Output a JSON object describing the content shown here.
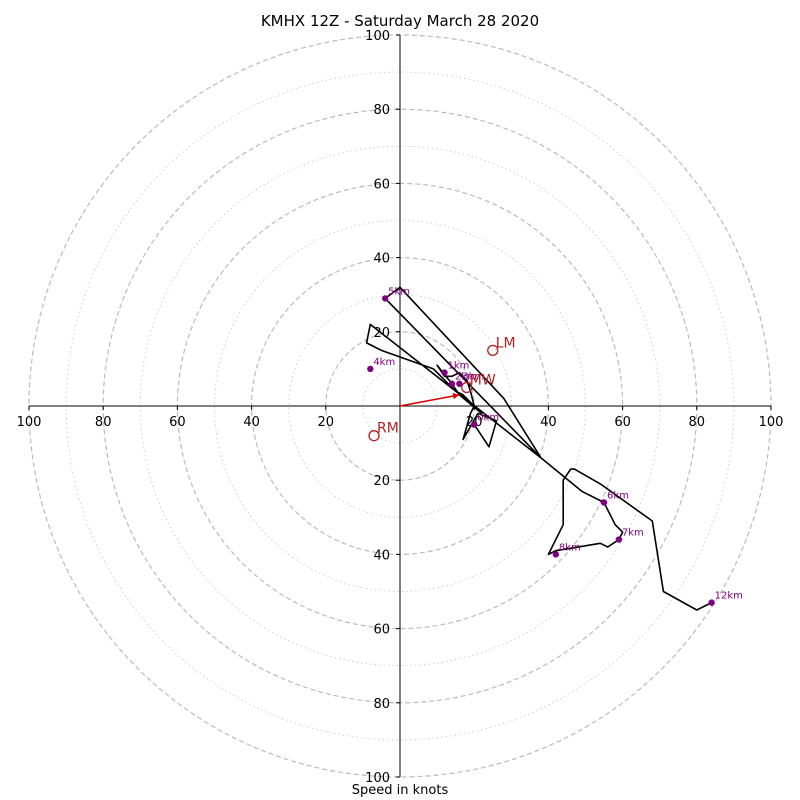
{
  "chart_data": {
    "type": "hodograph",
    "title": "KMHX 12Z - Saturday March 28 2020",
    "xlabel": "Speed in knots",
    "ylabel": "",
    "xlim": [
      -100,
      100
    ],
    "ylim": [
      -100,
      100
    ],
    "rings_dashed": [
      20,
      40,
      60,
      80,
      100
    ],
    "rings_dotted": [
      10,
      30,
      50,
      70,
      90
    ],
    "x_ticks": [
      {
        "value": -100,
        "label": "100"
      },
      {
        "value": -80,
        "label": "80"
      },
      {
        "value": -60,
        "label": "60"
      },
      {
        "value": -40,
        "label": "40"
      },
      {
        "value": -20,
        "label": "20"
      },
      {
        "value": 20,
        "label": "20"
      },
      {
        "value": 40,
        "label": "40"
      },
      {
        "value": 60,
        "label": "60"
      },
      {
        "value": 80,
        "label": "80"
      },
      {
        "value": 100,
        "label": "100"
      }
    ],
    "y_ticks": [
      {
        "value": 100,
        "label": "100"
      },
      {
        "value": 80,
        "label": "80"
      },
      {
        "value": 60,
        "label": "60"
      },
      {
        "value": 40,
        "label": "40"
      },
      {
        "value": 20,
        "label": "20"
      },
      {
        "value": -20,
        "label": "20"
      },
      {
        "value": -40,
        "label": "40"
      },
      {
        "value": -60,
        "label": "60"
      },
      {
        "value": -80,
        "label": "80"
      },
      {
        "value": -100,
        "label": "100"
      }
    ],
    "hodograph_trace": [
      [
        20,
        -5
      ],
      [
        24,
        -11
      ],
      [
        26,
        -4
      ],
      [
        21,
        -2
      ],
      [
        17,
        -9
      ],
      [
        19,
        -2
      ],
      [
        20,
        0
      ],
      [
        19,
        4
      ],
      [
        18,
        7
      ],
      [
        16,
        9
      ],
      [
        14,
        8
      ],
      [
        12,
        8
      ],
      [
        10,
        11
      ],
      [
        14,
        6
      ],
      [
        16,
        3
      ],
      [
        22,
        -2
      ],
      [
        17,
        3
      ],
      [
        15,
        4
      ],
      [
        10,
        9
      ],
      [
        9,
        10
      ],
      [
        -5,
        15
      ],
      [
        -9,
        17
      ],
      [
        -8,
        22
      ],
      [
        38,
        -14
      ],
      [
        -4,
        29
      ],
      [
        0,
        32
      ],
      [
        28,
        2
      ],
      [
        38,
        -14
      ],
      [
        49,
        -23
      ],
      [
        55,
        -26
      ],
      [
        58,
        -32
      ],
      [
        60,
        -34
      ],
      [
        59,
        -36
      ],
      [
        56,
        -38
      ],
      [
        54,
        -37
      ],
      [
        42,
        -39
      ],
      [
        40,
        -40
      ],
      [
        44,
        -32
      ],
      [
        44,
        -31
      ],
      [
        44,
        -28
      ],
      [
        44,
        -25
      ],
      [
        44,
        -20
      ],
      [
        46,
        -17
      ],
      [
        47,
        -17
      ],
      [
        54,
        -21
      ],
      [
        68,
        -31
      ],
      [
        71,
        -50
      ],
      [
        80,
        -55
      ],
      [
        84,
        -53
      ]
    ],
    "height_markers": [
      {
        "label": "0km",
        "x": 20,
        "y": -5
      },
      {
        "label": "1km",
        "x": 12,
        "y": 9
      },
      {
        "label": "2km",
        "x": 14,
        "y": 6
      },
      {
        "label": "3km",
        "x": 16,
        "y": 6
      },
      {
        "label": "4km",
        "x": -8,
        "y": 10
      },
      {
        "label": "5km",
        "x": -4,
        "y": 29
      },
      {
        "label": "6km",
        "x": 55,
        "y": -26
      },
      {
        "label": "7km",
        "x": 59,
        "y": -36
      },
      {
        "label": "8km",
        "x": 42,
        "y": -40
      },
      {
        "label": "12km",
        "x": 84,
        "y": -53
      }
    ],
    "storm_motion": [
      {
        "label": "LM",
        "x": 25,
        "y": 15
      },
      {
        "label": "MW",
        "x": 18,
        "y": 5
      },
      {
        "label": "RM",
        "x": -7,
        "y": -8
      }
    ],
    "mean_wind_vector": {
      "from": [
        0,
        0
      ],
      "to": [
        16,
        3
      ]
    },
    "colors": {
      "trace": "#000000",
      "marker": "#800080",
      "storm_motion": "#b22222",
      "vector": "#dd0000",
      "ring_dashed": "#bbbbbb",
      "ring_dotted": "#cccccc",
      "axis": "#000000"
    }
  }
}
